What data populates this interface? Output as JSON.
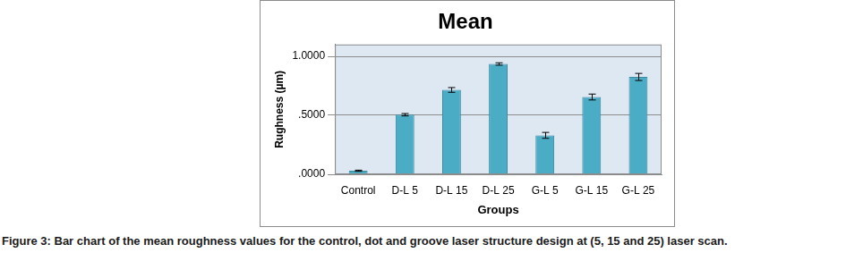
{
  "chart_data": {
    "type": "bar",
    "title": "Mean",
    "caption": "Figure 3: Bar chart of the mean roughness values for the control, dot and groove laser structure design at (5, 15 and 25) laser scan.",
    "x_label": "Groups",
    "y_label": "Rughness (µm)",
    "categories": [
      "Control",
      "D-L 5",
      "D-L 15",
      "D-L 25",
      "G-L 5",
      "G-L 15",
      "G-L 25"
    ],
    "values": [
      0.03,
      0.505,
      0.715,
      0.935,
      0.33,
      0.655,
      0.825
    ],
    "errors": [
      0.005,
      0.01,
      0.02,
      0.01,
      0.025,
      0.025,
      0.03
    ],
    "color": "#4bacc6",
    "ylim": [
      0,
      1.1
    ],
    "yticks": [
      {
        "value": 0,
        "label": ".0000"
      },
      {
        "value": 0.5,
        "label": ".5000"
      },
      {
        "value": 1,
        "label": "1.0000"
      }
    ],
    "grid": true,
    "data_labels": false
  }
}
